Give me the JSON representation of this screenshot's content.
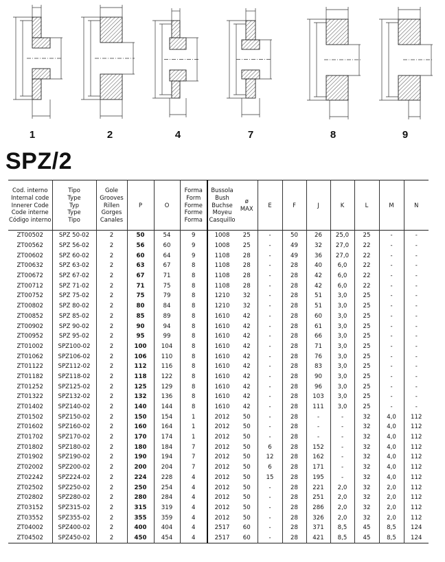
{
  "figures": [
    "1",
    "2",
    "4",
    "7",
    "8",
    "9"
  ],
  "title": "SPZ/2",
  "table": {
    "headers": [
      [
        "Cod. interno",
        "Internal code",
        "Innerer Code",
        "Code interne",
        "Código interno"
      ],
      [
        "Tipo",
        "Type",
        "Typ",
        "Type",
        "Tipo"
      ],
      [
        "Gole",
        "Grooves",
        "Rillen",
        "Gorges",
        "Canales"
      ],
      [
        "P"
      ],
      [
        "O"
      ],
      [
        "Forma",
        "Form",
        "Forme",
        "Forme",
        "Forma"
      ],
      [
        "Bussola",
        "Bush",
        "Buchse",
        "Moyeu",
        "Casquillo"
      ],
      [
        "ø",
        "MAX"
      ],
      [
        "E"
      ],
      [
        "F"
      ],
      [
        "J"
      ],
      [
        "K"
      ],
      [
        "L"
      ],
      [
        "M"
      ],
      [
        "N"
      ]
    ],
    "rows": [
      [
        "ZT00502",
        "SPZ 50-02",
        "2",
        "50",
        "54",
        "9",
        "1008",
        "25",
        "-",
        "50",
        "26",
        "25,0",
        "25",
        "-",
        "-"
      ],
      [
        "ZT00562",
        "SPZ 56-02",
        "2",
        "56",
        "60",
        "9",
        "1008",
        "25",
        "-",
        "49",
        "32",
        "27,0",
        "22",
        "-",
        "-"
      ],
      [
        "ZT00602",
        "SPZ 60-02",
        "2",
        "60",
        "64",
        "9",
        "1108",
        "28",
        "-",
        "49",
        "36",
        "27,0",
        "22",
        "-",
        "-"
      ],
      [
        "ZT00632",
        "SPZ 63-02",
        "2",
        "63",
        "67",
        "8",
        "1108",
        "28",
        "-",
        "28",
        "40",
        "6,0",
        "22",
        "-",
        "-"
      ],
      [
        "ZT00672",
        "SPZ 67-02",
        "2",
        "67",
        "71",
        "8",
        "1108",
        "28",
        "-",
        "28",
        "42",
        "6,0",
        "22",
        "-",
        "-"
      ],
      [
        "ZT00712",
        "SPZ 71-02",
        "2",
        "71",
        "75",
        "8",
        "1108",
        "28",
        "-",
        "28",
        "42",
        "6,0",
        "22",
        "-",
        "-"
      ],
      [
        "ZT00752",
        "SPZ 75-02",
        "2",
        "75",
        "79",
        "8",
        "1210",
        "32",
        "-",
        "28",
        "51",
        "3,0",
        "25",
        "-",
        "-"
      ],
      [
        "ZT00802",
        "SPZ 80-02",
        "2",
        "80",
        "84",
        "8",
        "1210",
        "32",
        "-",
        "28",
        "51",
        "3,0",
        "25",
        "-",
        "-"
      ],
      [
        "ZT00852",
        "SPZ 85-02",
        "2",
        "85",
        "89",
        "8",
        "1610",
        "42",
        "-",
        "28",
        "60",
        "3,0",
        "25",
        "-",
        "-"
      ],
      [
        "ZT00902",
        "SPZ 90-02",
        "2",
        "90",
        "94",
        "8",
        "1610",
        "42",
        "-",
        "28",
        "61",
        "3,0",
        "25",
        "-",
        "-"
      ],
      [
        "ZT00952",
        "SPZ 95-02",
        "2",
        "95",
        "99",
        "8",
        "1610",
        "42",
        "-",
        "28",
        "66",
        "3,0",
        "25",
        "-",
        "-"
      ],
      [
        "ZT01002",
        "SPZ100-02",
        "2",
        "100",
        "104",
        "8",
        "1610",
        "42",
        "-",
        "28",
        "71",
        "3,0",
        "25",
        "-",
        "-"
      ],
      [
        "ZT01062",
        "SPZ106-02",
        "2",
        "106",
        "110",
        "8",
        "1610",
        "42",
        "-",
        "28",
        "76",
        "3,0",
        "25",
        "-",
        "-"
      ],
      [
        "ZT01122",
        "SPZ112-02",
        "2",
        "112",
        "116",
        "8",
        "1610",
        "42",
        "-",
        "28",
        "83",
        "3,0",
        "25",
        "-",
        "-"
      ],
      [
        "ZT01182",
        "SPZ118-02",
        "2",
        "118",
        "122",
        "8",
        "1610",
        "42",
        "-",
        "28",
        "90",
        "3,0",
        "25",
        "-",
        "-"
      ],
      [
        "ZT01252",
        "SPZ125-02",
        "2",
        "125",
        "129",
        "8",
        "1610",
        "42",
        "-",
        "28",
        "96",
        "3,0",
        "25",
        "-",
        "-"
      ],
      [
        "ZT01322",
        "SPZ132-02",
        "2",
        "132",
        "136",
        "8",
        "1610",
        "42",
        "-",
        "28",
        "103",
        "3,0",
        "25",
        "-",
        "-"
      ],
      [
        "ZT01402",
        "SPZ140-02",
        "2",
        "140",
        "144",
        "8",
        "1610",
        "42",
        "-",
        "28",
        "111",
        "3,0",
        "25",
        "-",
        "-"
      ],
      [
        "ZT01502",
        "SPZ150-02",
        "2",
        "150",
        "154",
        "1",
        "2012",
        "50",
        "-",
        "28",
        "-",
        "-",
        "32",
        "4,0",
        "112"
      ],
      [
        "ZT01602",
        "SPZ160-02",
        "2",
        "160",
        "164",
        "1",
        "2012",
        "50",
        "-",
        "28",
        "-",
        "-",
        "32",
        "4,0",
        "112"
      ],
      [
        "ZT01702",
        "SPZ170-02",
        "2",
        "170",
        "174",
        "1",
        "2012",
        "50",
        "-",
        "28",
        "-",
        "-",
        "32",
        "4,0",
        "112"
      ],
      [
        "ZT01802",
        "SPZ180-02",
        "2",
        "180",
        "184",
        "7",
        "2012",
        "50",
        "6",
        "28",
        "152",
        "-",
        "32",
        "4,0",
        "112"
      ],
      [
        "ZT01902",
        "SPZ190-02",
        "2",
        "190",
        "194",
        "7",
        "2012",
        "50",
        "12",
        "28",
        "162",
        "-",
        "32",
        "4,0",
        "112"
      ],
      [
        "ZT02002",
        "SPZ200-02",
        "2",
        "200",
        "204",
        "7",
        "2012",
        "50",
        "6",
        "28",
        "171",
        "-",
        "32",
        "4,0",
        "112"
      ],
      [
        "ZT02242",
        "SPZ224-02",
        "2",
        "224",
        "228",
        "4",
        "2012",
        "50",
        "15",
        "28",
        "195",
        "-",
        "32",
        "4,0",
        "112"
      ],
      [
        "ZT02502",
        "SPZ250-02",
        "2",
        "250",
        "254",
        "4",
        "2012",
        "50",
        "-",
        "28",
        "221",
        "2,0",
        "32",
        "2,0",
        "112"
      ],
      [
        "ZT02802",
        "SPZ280-02",
        "2",
        "280",
        "284",
        "4",
        "2012",
        "50",
        "-",
        "28",
        "251",
        "2,0",
        "32",
        "2,0",
        "112"
      ],
      [
        "ZT03152",
        "SPZ315-02",
        "2",
        "315",
        "319",
        "4",
        "2012",
        "50",
        "-",
        "28",
        "286",
        "2,0",
        "32",
        "2,0",
        "112"
      ],
      [
        "ZT03552",
        "SPZ355-02",
        "2",
        "355",
        "359",
        "4",
        "2012",
        "50",
        "-",
        "28",
        "326",
        "2,0",
        "32",
        "2,0",
        "112"
      ],
      [
        "ZT04002",
        "SPZ400-02",
        "2",
        "400",
        "404",
        "4",
        "2517",
        "60",
        "-",
        "28",
        "371",
        "8,5",
        "45",
        "8,5",
        "124"
      ],
      [
        "ZT04502",
        "SPZ450-02",
        "2",
        "450",
        "454",
        "4",
        "2517",
        "60",
        "-",
        "28",
        "421",
        "8,5",
        "45",
        "8,5",
        "124"
      ]
    ]
  }
}
